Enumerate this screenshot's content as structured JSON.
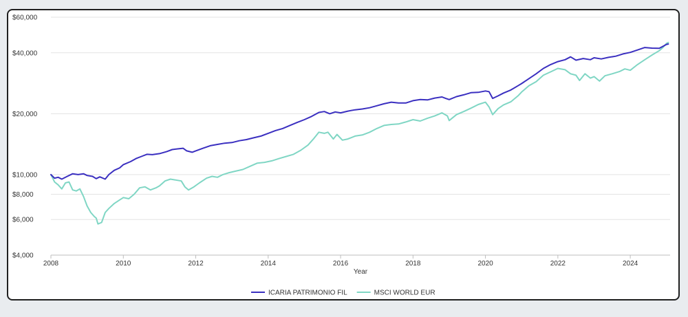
{
  "chart_data": {
    "type": "line",
    "title": "",
    "xlabel": "Year",
    "ylabel": "",
    "y_scale": "log",
    "ylim": [
      4000,
      60000
    ],
    "xlim": [
      2008,
      2025.1
    ],
    "grid": "horizontal",
    "legend_position": "bottom-center",
    "y_ticks": [
      {
        "value": 4000,
        "label": "$4,000"
      },
      {
        "value": 6000,
        "label": "$6,000"
      },
      {
        "value": 8000,
        "label": "$8,000"
      },
      {
        "value": 10000,
        "label": "$10,000"
      },
      {
        "value": 20000,
        "label": "$20,000"
      },
      {
        "value": 40000,
        "label": "$40,000"
      },
      {
        "value": 60000,
        "label": "$60,000"
      }
    ],
    "x_ticks": [
      {
        "value": 2008,
        "label": "2008"
      },
      {
        "value": 2010,
        "label": "2010"
      },
      {
        "value": 2012,
        "label": "2012"
      },
      {
        "value": 2014,
        "label": "2014"
      },
      {
        "value": 2016,
        "label": "2016"
      },
      {
        "value": 2018,
        "label": "2018"
      },
      {
        "value": 2020,
        "label": "2020"
      },
      {
        "value": 2022,
        "label": "2022"
      },
      {
        "value": 2024,
        "label": "2024"
      }
    ],
    "series": [
      {
        "name": "ICARIA PATRIMONIO FIL",
        "color": "#3a2fc0",
        "points": [
          [
            2008.0,
            10000
          ],
          [
            2008.1,
            9600
          ],
          [
            2008.2,
            9700
          ],
          [
            2008.3,
            9500
          ],
          [
            2008.45,
            9800
          ],
          [
            2008.6,
            10100
          ],
          [
            2008.75,
            10000
          ],
          [
            2008.9,
            10100
          ],
          [
            2009.0,
            9900
          ],
          [
            2009.15,
            9800
          ],
          [
            2009.25,
            9550
          ],
          [
            2009.35,
            9750
          ],
          [
            2009.5,
            9500
          ],
          [
            2009.6,
            10000
          ],
          [
            2009.75,
            10500
          ],
          [
            2009.9,
            10800
          ],
          [
            2010.0,
            11200
          ],
          [
            2010.2,
            11600
          ],
          [
            2010.35,
            12000
          ],
          [
            2010.5,
            12300
          ],
          [
            2010.65,
            12600
          ],
          [
            2010.8,
            12550
          ],
          [
            2011.0,
            12700
          ],
          [
            2011.2,
            13000
          ],
          [
            2011.35,
            13300
          ],
          [
            2011.5,
            13400
          ],
          [
            2011.65,
            13500
          ],
          [
            2011.75,
            13100
          ],
          [
            2011.9,
            12900
          ],
          [
            2012.0,
            13100
          ],
          [
            2012.2,
            13500
          ],
          [
            2012.4,
            13900
          ],
          [
            2012.6,
            14100
          ],
          [
            2012.8,
            14300
          ],
          [
            2013.0,
            14400
          ],
          [
            2013.2,
            14700
          ],
          [
            2013.4,
            14900
          ],
          [
            2013.6,
            15200
          ],
          [
            2013.8,
            15500
          ],
          [
            2014.0,
            16000
          ],
          [
            2014.2,
            16500
          ],
          [
            2014.4,
            16900
          ],
          [
            2014.6,
            17500
          ],
          [
            2014.8,
            18100
          ],
          [
            2015.0,
            18700
          ],
          [
            2015.2,
            19400
          ],
          [
            2015.4,
            20300
          ],
          [
            2015.55,
            20500
          ],
          [
            2015.7,
            20000
          ],
          [
            2015.85,
            20400
          ],
          [
            2016.0,
            20200
          ],
          [
            2016.2,
            20600
          ],
          [
            2016.4,
            20900
          ],
          [
            2016.6,
            21100
          ],
          [
            2016.8,
            21400
          ],
          [
            2017.0,
            21900
          ],
          [
            2017.2,
            22400
          ],
          [
            2017.4,
            22800
          ],
          [
            2017.6,
            22600
          ],
          [
            2017.8,
            22600
          ],
          [
            2018.0,
            23200
          ],
          [
            2018.2,
            23500
          ],
          [
            2018.4,
            23400
          ],
          [
            2018.6,
            23900
          ],
          [
            2018.8,
            24200
          ],
          [
            2018.9,
            23800
          ],
          [
            2019.0,
            23500
          ],
          [
            2019.2,
            24300
          ],
          [
            2019.4,
            24800
          ],
          [
            2019.6,
            25400
          ],
          [
            2019.8,
            25500
          ],
          [
            2020.0,
            25900
          ],
          [
            2020.1,
            25700
          ],
          [
            2020.2,
            23800
          ],
          [
            2020.35,
            24500
          ],
          [
            2020.5,
            25300
          ],
          [
            2020.7,
            26200
          ],
          [
            2020.9,
            27500
          ],
          [
            2021.0,
            28200
          ],
          [
            2021.2,
            29800
          ],
          [
            2021.4,
            31500
          ],
          [
            2021.6,
            33500
          ],
          [
            2021.8,
            35000
          ],
          [
            2022.0,
            36200
          ],
          [
            2022.2,
            37000
          ],
          [
            2022.35,
            38200
          ],
          [
            2022.5,
            36800
          ],
          [
            2022.7,
            37500
          ],
          [
            2022.9,
            37000
          ],
          [
            2023.0,
            37800
          ],
          [
            2023.2,
            37300
          ],
          [
            2023.4,
            38000
          ],
          [
            2023.6,
            38500
          ],
          [
            2023.8,
            39500
          ],
          [
            2024.0,
            40200
          ],
          [
            2024.2,
            41300
          ],
          [
            2024.4,
            42500
          ],
          [
            2024.6,
            42200
          ],
          [
            2024.8,
            42100
          ],
          [
            2025.0,
            44000
          ],
          [
            2025.05,
            44200
          ]
        ]
      },
      {
        "name": "MSCI WORLD EUR",
        "color": "#7fd6c4",
        "points": [
          [
            2008.0,
            10000
          ],
          [
            2008.1,
            9200
          ],
          [
            2008.2,
            8900
          ],
          [
            2008.3,
            8500
          ],
          [
            2008.4,
            9100
          ],
          [
            2008.5,
            9200
          ],
          [
            2008.6,
            8400
          ],
          [
            2008.7,
            8300
          ],
          [
            2008.8,
            8500
          ],
          [
            2008.9,
            7800
          ],
          [
            2009.0,
            7000
          ],
          [
            2009.1,
            6500
          ],
          [
            2009.2,
            6200
          ],
          [
            2009.25,
            6100
          ],
          [
            2009.3,
            5700
          ],
          [
            2009.4,
            5800
          ],
          [
            2009.5,
            6500
          ],
          [
            2009.6,
            6800
          ],
          [
            2009.75,
            7200
          ],
          [
            2009.9,
            7500
          ],
          [
            2010.0,
            7700
          ],
          [
            2010.15,
            7600
          ],
          [
            2010.3,
            8000
          ],
          [
            2010.45,
            8600
          ],
          [
            2010.6,
            8700
          ],
          [
            2010.75,
            8400
          ],
          [
            2010.9,
            8600
          ],
          [
            2011.0,
            8800
          ],
          [
            2011.15,
            9300
          ],
          [
            2011.3,
            9500
          ],
          [
            2011.45,
            9400
          ],
          [
            2011.6,
            9300
          ],
          [
            2011.7,
            8700
          ],
          [
            2011.8,
            8400
          ],
          [
            2011.95,
            8700
          ],
          [
            2012.1,
            9100
          ],
          [
            2012.3,
            9600
          ],
          [
            2012.45,
            9800
          ],
          [
            2012.6,
            9700
          ],
          [
            2012.75,
            10000
          ],
          [
            2012.9,
            10200
          ],
          [
            2013.1,
            10400
          ],
          [
            2013.3,
            10600
          ],
          [
            2013.5,
            11000
          ],
          [
            2013.7,
            11400
          ],
          [
            2013.9,
            11500
          ],
          [
            2014.1,
            11700
          ],
          [
            2014.3,
            12000
          ],
          [
            2014.5,
            12300
          ],
          [
            2014.7,
            12600
          ],
          [
            2014.9,
            13200
          ],
          [
            2015.1,
            14000
          ],
          [
            2015.25,
            15000
          ],
          [
            2015.4,
            16200
          ],
          [
            2015.55,
            16000
          ],
          [
            2015.65,
            16200
          ],
          [
            2015.8,
            15000
          ],
          [
            2015.9,
            15800
          ],
          [
            2016.05,
            14800
          ],
          [
            2016.2,
            15000
          ],
          [
            2016.4,
            15500
          ],
          [
            2016.6,
            15700
          ],
          [
            2016.8,
            16200
          ],
          [
            2017.0,
            16900
          ],
          [
            2017.2,
            17500
          ],
          [
            2017.4,
            17700
          ],
          [
            2017.6,
            17800
          ],
          [
            2017.8,
            18200
          ],
          [
            2018.0,
            18700
          ],
          [
            2018.2,
            18400
          ],
          [
            2018.4,
            19000
          ],
          [
            2018.6,
            19500
          ],
          [
            2018.8,
            20200
          ],
          [
            2018.95,
            19500
          ],
          [
            2019.0,
            18500
          ],
          [
            2019.2,
            19800
          ],
          [
            2019.4,
            20500
          ],
          [
            2019.6,
            21300
          ],
          [
            2019.8,
            22200
          ],
          [
            2020.0,
            22800
          ],
          [
            2020.1,
            21600
          ],
          [
            2020.2,
            19800
          ],
          [
            2020.35,
            21200
          ],
          [
            2020.5,
            22100
          ],
          [
            2020.7,
            22900
          ],
          [
            2020.9,
            24500
          ],
          [
            2021.0,
            25600
          ],
          [
            2021.2,
            27500
          ],
          [
            2021.4,
            28800
          ],
          [
            2021.6,
            31000
          ],
          [
            2021.8,
            32200
          ],
          [
            2022.0,
            33500
          ],
          [
            2022.2,
            33000
          ],
          [
            2022.35,
            31500
          ],
          [
            2022.5,
            31000
          ],
          [
            2022.6,
            29200
          ],
          [
            2022.75,
            31500
          ],
          [
            2022.9,
            30000
          ],
          [
            2023.0,
            30500
          ],
          [
            2023.15,
            29000
          ],
          [
            2023.3,
            30800
          ],
          [
            2023.5,
            31500
          ],
          [
            2023.7,
            32300
          ],
          [
            2023.85,
            33300
          ],
          [
            2024.0,
            32800
          ],
          [
            2024.2,
            35000
          ],
          [
            2024.4,
            37000
          ],
          [
            2024.6,
            39000
          ],
          [
            2024.8,
            41000
          ],
          [
            2024.9,
            42500
          ],
          [
            2025.0,
            44500
          ],
          [
            2025.05,
            45000
          ]
        ]
      }
    ]
  }
}
